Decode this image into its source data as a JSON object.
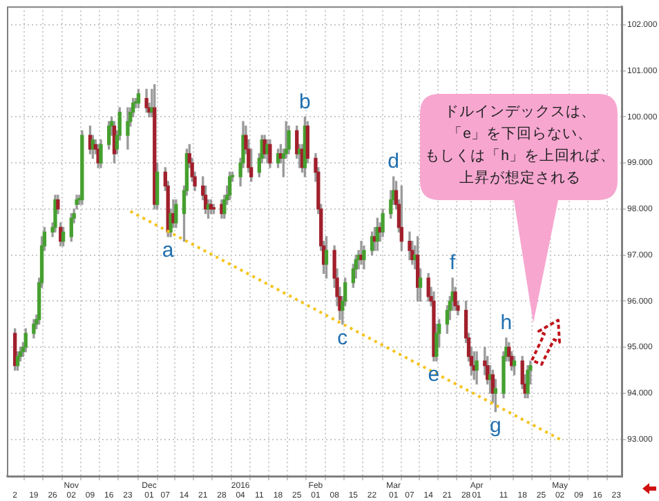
{
  "chart_data": {
    "type": "candlestick",
    "x": [
      "2015-10-12",
      "2015-10-13",
      "2015-10-14",
      "2015-10-15",
      "2015-10-16",
      "2015-10-19",
      "2015-10-20",
      "2015-10-21",
      "2015-10-22",
      "2015-10-23",
      "2015-10-26",
      "2015-10-27",
      "2015-10-28",
      "2015-10-29",
      "2015-10-30",
      "2015-11-02",
      "2015-11-03",
      "2015-11-04",
      "2015-11-05",
      "2015-11-06",
      "2015-11-09",
      "2015-11-10",
      "2015-11-11",
      "2015-11-12",
      "2015-11-13",
      "2015-11-16",
      "2015-11-17",
      "2015-11-18",
      "2015-11-19",
      "2015-11-20",
      "2015-11-23",
      "2015-11-24",
      "2015-11-25",
      "2015-11-26",
      "2015-11-27",
      "2015-11-30",
      "2015-12-01",
      "2015-12-02",
      "2015-12-03",
      "2015-12-04",
      "2015-12-07",
      "2015-12-08",
      "2015-12-09",
      "2015-12-10",
      "2015-12-11",
      "2015-12-14",
      "2015-12-15",
      "2015-12-16",
      "2015-12-17",
      "2015-12-18",
      "2015-12-21",
      "2015-12-22",
      "2015-12-23",
      "2015-12-24",
      "2015-12-25",
      "2015-12-28",
      "2015-12-29",
      "2015-12-30",
      "2015-12-31",
      "2016-01-01",
      "2016-01-04",
      "2016-01-05",
      "2016-01-06",
      "2016-01-07",
      "2016-01-08",
      "2016-01-11",
      "2016-01-12",
      "2016-01-13",
      "2016-01-14",
      "2016-01-15",
      "2016-01-18",
      "2016-01-19",
      "2016-01-20",
      "2016-01-21",
      "2016-01-22",
      "2016-01-25",
      "2016-01-26",
      "2016-01-27",
      "2016-01-28",
      "2016-01-29",
      "2016-02-01",
      "2016-02-02",
      "2016-02-03",
      "2016-02-04",
      "2016-02-05",
      "2016-02-08",
      "2016-02-09",
      "2016-02-10",
      "2016-02-11",
      "2016-02-12",
      "2016-02-15",
      "2016-02-16",
      "2016-02-17",
      "2016-02-18",
      "2016-02-19",
      "2016-02-22",
      "2016-02-23",
      "2016-02-24",
      "2016-02-25",
      "2016-02-26",
      "2016-02-29",
      "2016-03-01",
      "2016-03-02",
      "2016-03-03",
      "2016-03-04",
      "2016-03-07",
      "2016-03-08",
      "2016-03-09",
      "2016-03-10",
      "2016-03-11",
      "2016-03-14",
      "2016-03-15",
      "2016-03-16",
      "2016-03-17",
      "2016-03-18",
      "2016-03-21",
      "2016-03-22",
      "2016-03-23",
      "2016-03-24",
      "2016-03-25",
      "2016-03-28",
      "2016-03-29",
      "2016-03-30",
      "2016-03-31",
      "2016-04-01",
      "2016-04-04",
      "2016-04-05",
      "2016-04-06",
      "2016-04-07",
      "2016-04-08",
      "2016-04-11",
      "2016-04-12",
      "2016-04-13",
      "2016-04-14",
      "2016-04-15",
      "2016-04-18",
      "2016-04-19",
      "2016-04-20",
      "2016-04-21"
    ],
    "ohlc": [
      [
        95.3,
        95.4,
        94.5,
        94.6
      ],
      [
        94.6,
        94.9,
        94.5,
        94.8
      ],
      [
        94.8,
        95.0,
        94.7,
        94.9
      ],
      [
        94.9,
        95.1,
        94.8,
        95.0
      ],
      [
        95.0,
        95.4,
        94.9,
        95.3
      ],
      [
        95.3,
        95.6,
        95.2,
        95.5
      ],
      [
        95.5,
        95.7,
        95.4,
        95.6
      ],
      [
        95.6,
        96.5,
        95.5,
        96.4
      ],
      [
        96.4,
        97.4,
        96.3,
        97.2
      ],
      [
        97.2,
        97.6,
        97.1,
        97.5
      ],
      [
        97.5,
        97.7,
        97.4,
        97.6
      ],
      [
        97.6,
        98.3,
        97.5,
        98.2
      ],
      [
        98.2,
        98.3,
        97.9,
        98.0
      ],
      [
        97.6,
        97.7,
        97.2,
        97.3
      ],
      [
        97.3,
        97.6,
        97.2,
        97.5
      ],
      [
        97.4,
        97.9,
        97.3,
        97.8
      ],
      [
        97.8,
        98.0,
        97.7,
        97.9
      ],
      [
        98.1,
        98.3,
        98.0,
        98.2
      ],
      [
        98.2,
        98.3,
        98.1,
        98.2
      ],
      [
        98.2,
        99.7,
        98.1,
        99.6
      ],
      [
        99.6,
        99.8,
        99.2,
        99.3
      ],
      [
        99.3,
        99.6,
        99.1,
        99.5
      ],
      [
        99.4,
        99.5,
        99.2,
        99.3
      ],
      [
        99.3,
        99.4,
        98.9,
        99.0
      ],
      [
        99.0,
        99.5,
        98.9,
        99.4
      ],
      [
        99.4,
        99.9,
        99.3,
        99.8
      ],
      [
        99.8,
        100.0,
        99.6,
        99.9
      ],
      [
        99.8,
        99.9,
        99.0,
        99.2
      ],
      [
        99.3,
        99.7,
        99.2,
        99.6
      ],
      [
        99.6,
        100.2,
        99.5,
        100.1
      ],
      [
        99.6,
        100.2,
        99.3,
        99.9
      ],
      [
        99.9,
        100.2,
        99.8,
        100.1
      ],
      [
        100.1,
        100.4,
        100.0,
        100.3
      ],
      [
        100.3,
        100.4,
        100.2,
        100.3
      ],
      [
        100.3,
        100.6,
        100.2,
        100.5
      ],
      [
        100.4,
        100.6,
        100.1,
        100.2
      ],
      [
        100.2,
        100.3,
        100.0,
        100.1
      ],
      [
        100.1,
        100.6,
        100.0,
        100.2
      ],
      [
        100.2,
        100.7,
        98.0,
        98.1
      ],
      [
        98.1,
        99.0,
        98.0,
        98.8
      ],
      [
        98.8,
        98.9,
        98.4,
        98.5
      ],
      [
        98.5,
        98.6,
        97.4,
        97.5
      ],
      [
        97.5,
        98.0,
        97.4,
        97.9
      ],
      [
        97.9,
        98.2,
        97.6,
        97.7
      ],
      [
        97.7,
        98.2,
        97.6,
        98.1
      ],
      [
        97.9,
        98.5,
        97.3,
        98.4
      ],
      [
        98.4,
        99.3,
        98.3,
        99.2
      ],
      [
        99.2,
        99.4,
        98.9,
        99.0
      ],
      [
        99.0,
        99.1,
        98.6,
        98.7
      ],
      [
        98.7,
        98.8,
        98.4,
        98.5
      ],
      [
        98.5,
        98.7,
        98.2,
        98.3
      ],
      [
        98.3,
        98.5,
        97.9,
        98.0
      ],
      [
        98.0,
        98.2,
        97.8,
        98.1
      ],
      [
        98.1,
        98.2,
        97.9,
        98.0
      ],
      [
        98.0,
        98.1,
        97.9,
        98.0
      ],
      [
        98.1,
        98.2,
        97.8,
        97.9
      ],
      [
        97.9,
        98.3,
        97.8,
        98.2
      ],
      [
        98.2,
        98.5,
        98.1,
        98.3
      ],
      [
        98.3,
        98.8,
        98.2,
        98.7
      ],
      [
        98.7,
        98.8,
        98.6,
        98.7
      ],
      [
        98.7,
        99.1,
        98.5,
        99.0
      ],
      [
        99.0,
        99.9,
        98.9,
        99.6
      ],
      [
        99.6,
        99.8,
        99.2,
        99.3
      ],
      [
        99.3,
        99.5,
        98.8,
        98.9
      ],
      [
        98.9,
        99.3,
        98.6,
        98.7
      ],
      [
        98.8,
        99.2,
        98.7,
        99.1
      ],
      [
        99.1,
        99.6,
        99.0,
        99.5
      ],
      [
        99.5,
        99.6,
        99.1,
        99.2
      ],
      [
        99.2,
        99.5,
        99.0,
        99.4
      ],
      [
        99.4,
        99.5,
        98.9,
        99.0
      ],
      [
        99.0,
        99.3,
        98.9,
        99.2
      ],
      [
        99.2,
        99.4,
        99.0,
        99.1
      ],
      [
        99.1,
        99.3,
        98.7,
        99.2
      ],
      [
        99.2,
        99.9,
        99.1,
        99.3
      ],
      [
        99.3,
        99.8,
        99.2,
        99.7
      ],
      [
        99.7,
        99.8,
        99.1,
        99.2
      ],
      [
        99.2,
        99.4,
        98.9,
        99.3
      ],
      [
        99.3,
        99.4,
        98.8,
        98.9
      ],
      [
        98.9,
        100.0,
        98.7,
        99.8
      ],
      [
        99.8,
        99.9,
        99.0,
        99.1
      ],
      [
        99.1,
        99.2,
        98.6,
        98.8
      ],
      [
        98.8,
        98.9,
        97.9,
        98.0
      ],
      [
        98.0,
        98.1,
        97.1,
        97.2
      ],
      [
        97.2,
        97.3,
        96.6,
        96.8
      ],
      [
        96.8,
        97.4,
        96.5,
        97.1
      ],
      [
        97.1,
        97.2,
        96.3,
        96.5
      ],
      [
        96.5,
        96.7,
        95.9,
        96.1
      ],
      [
        96.1,
        96.3,
        95.6,
        95.8
      ],
      [
        95.8,
        96.1,
        95.5,
        96.0
      ],
      [
        96.0,
        96.5,
        95.9,
        96.4
      ],
      [
        96.4,
        96.8,
        96.3,
        96.7
      ],
      [
        96.7,
        97.0,
        96.5,
        96.9
      ],
      [
        96.9,
        97.1,
        96.7,
        97.0
      ],
      [
        97.0,
        97.3,
        96.8,
        96.9
      ],
      [
        96.9,
        97.2,
        96.7,
        97.1
      ],
      [
        97.1,
        97.5,
        97.0,
        97.4
      ],
      [
        97.4,
        97.6,
        97.1,
        97.3
      ],
      [
        97.3,
        97.8,
        97.1,
        97.6
      ],
      [
        97.6,
        97.7,
        97.3,
        97.5
      ],
      [
        97.5,
        98.0,
        97.4,
        97.9
      ],
      [
        97.9,
        98.4,
        97.8,
        98.2
      ],
      [
        98.2,
        98.7,
        98.1,
        98.4
      ],
      [
        98.4,
        98.6,
        98.0,
        98.1
      ],
      [
        98.1,
        98.2,
        97.5,
        97.6
      ],
      [
        97.6,
        98.5,
        97.1,
        97.3
      ],
      [
        97.3,
        97.5,
        96.9,
        97.1
      ],
      [
        97.1,
        97.3,
        96.8,
        96.9
      ],
      [
        96.9,
        97.2,
        96.7,
        97.0
      ],
      [
        97.0,
        97.4,
        96.0,
        96.3
      ],
      [
        96.3,
        96.7,
        96.0,
        96.5
      ],
      [
        96.5,
        96.6,
        96.0,
        96.1
      ],
      [
        96.1,
        96.3,
        95.9,
        96.0
      ],
      [
        96.0,
        96.2,
        94.7,
        94.8
      ],
      [
        94.8,
        95.5,
        94.7,
        95.3
      ],
      [
        95.3,
        95.6,
        95.0,
        95.5
      ],
      [
        95.5,
        95.9,
        95.3,
        95.8
      ],
      [
        95.8,
        96.1,
        95.6,
        96.0
      ],
      [
        96.0,
        96.5,
        95.8,
        96.2
      ],
      [
        96.2,
        96.3,
        95.8,
        95.9
      ],
      [
        95.9,
        96.0,
        95.7,
        95.8
      ],
      [
        95.8,
        96.0,
        95.1,
        95.2
      ],
      [
        95.2,
        95.3,
        94.7,
        94.8
      ],
      [
        94.8,
        95.0,
        94.4,
        94.6
      ],
      [
        94.6,
        94.9,
        94.3,
        94.5
      ],
      [
        94.5,
        94.9,
        94.2,
        94.7
      ],
      [
        94.7,
        95.0,
        94.4,
        94.6
      ],
      [
        94.6,
        94.8,
        94.2,
        94.3
      ],
      [
        94.3,
        94.6,
        94.0,
        94.4
      ],
      [
        94.4,
        94.5,
        93.8,
        94.0
      ],
      [
        94.0,
        94.3,
        93.6,
        94.1
      ],
      [
        94.0,
        94.9,
        93.9,
        94.8
      ],
      [
        94.8,
        95.2,
        94.7,
        95.0
      ],
      [
        95.0,
        95.1,
        94.7,
        94.8
      ],
      [
        94.8,
        94.9,
        94.5,
        94.6
      ],
      [
        94.6,
        94.8,
        94.4,
        94.7
      ],
      [
        94.7,
        94.8,
        94.1,
        94.2
      ],
      [
        94.2,
        94.4,
        93.9,
        94.0
      ],
      [
        94.0,
        94.6,
        93.9,
        94.5
      ],
      [
        94.5,
        94.7,
        94.2,
        94.6
      ]
    ],
    "colors": [
      "#a0202c",
      "#45a02f",
      "#45a02f",
      "#45a02f",
      "#45a02f",
      "#45a02f",
      "#45a02f",
      "#45a02f",
      "#45a02f",
      "#45a02f",
      "#45a02f",
      "#45a02f",
      "#a0202c",
      "#a0202c",
      "#45a02f",
      "#45a02f",
      "#45a02f",
      "#45a02f",
      "#45a02f",
      "#45a02f",
      "#a0202c",
      "#45a02f",
      "#a0202c",
      "#a0202c",
      "#45a02f",
      "#45a02f",
      "#45a02f",
      "#a0202c",
      "#45a02f",
      "#45a02f",
      "#45a02f",
      "#45a02f",
      "#45a02f",
      "#45a02f",
      "#45a02f",
      "#a0202c",
      "#a0202c",
      "#45a02f",
      "#a0202c",
      "#45a02f",
      "#a0202c",
      "#a0202c",
      "#45a02f",
      "#a0202c",
      "#45a02f",
      "#45a02f",
      "#45a02f",
      "#a0202c",
      "#a0202c",
      "#a0202c",
      "#a0202c",
      "#a0202c",
      "#45a02f",
      "#a0202c",
      "#a0202c",
      "#a0202c",
      "#45a02f",
      "#45a02f",
      "#45a02f",
      "#45a02f",
      "#45a02f",
      "#45a02f",
      "#a0202c",
      "#a0202c",
      "#a0202c",
      "#45a02f",
      "#45a02f",
      "#a0202c",
      "#45a02f",
      "#a0202c",
      "#45a02f",
      "#a0202c",
      "#45a02f",
      "#45a02f",
      "#45a02f",
      "#a0202c",
      "#45a02f",
      "#a0202c",
      "#45a02f",
      "#a0202c",
      "#a0202c",
      "#a0202c",
      "#a0202c",
      "#a0202c",
      "#45a02f",
      "#a0202c",
      "#a0202c",
      "#a0202c",
      "#45a02f",
      "#45a02f",
      "#45a02f",
      "#45a02f",
      "#45a02f",
      "#a0202c",
      "#45a02f",
      "#45a02f",
      "#a0202c",
      "#45a02f",
      "#a0202c",
      "#45a02f",
      "#45a02f",
      "#45a02f",
      "#a0202c",
      "#a0202c",
      "#a0202c",
      "#a0202c",
      "#a0202c",
      "#45a02f",
      "#a0202c",
      "#45a02f",
      "#a0202c",
      "#a0202c",
      "#a0202c",
      "#45a02f",
      "#45a02f",
      "#45a02f",
      "#45a02f",
      "#45a02f",
      "#a0202c",
      "#a0202c",
      "#a0202c",
      "#a0202c",
      "#a0202c",
      "#a0202c",
      "#45a02f",
      "#a0202c",
      "#a0202c",
      "#45a02f",
      "#a0202c",
      "#45a02f",
      "#45a02f",
      "#45a02f",
      "#a0202c",
      "#a0202c",
      "#45a02f",
      "#a0202c",
      "#a0202c",
      "#45a02f",
      "#45a02f"
    ],
    "series": [
      {
        "type": "line",
        "x": [
          "2015-11-24",
          "2016-05-02"
        ],
        "values": [
          97.95,
          93.0
        ],
        "color": "#f5c31c",
        "line_style": "dotted"
      }
    ],
    "xlim": [
      "2015-10-09",
      "2016-05-25"
    ],
    "xticks": [
      {
        "value": "2015-10-12",
        "label": "2"
      },
      {
        "value": "2015-10-19",
        "label": "19"
      },
      {
        "value": "2015-10-26",
        "label": "26"
      },
      {
        "value": "2015-11-02",
        "label": "Nov\n02"
      },
      {
        "value": "2015-11-09",
        "label": "09"
      },
      {
        "value": "2015-11-16",
        "label": "16"
      },
      {
        "value": "2015-11-23",
        "label": "23"
      },
      {
        "value": "2015-12-01",
        "label": "Dec\n01"
      },
      {
        "value": "2015-12-07",
        "label": "07"
      },
      {
        "value": "2015-12-14",
        "label": "14"
      },
      {
        "value": "2015-12-21",
        "label": "21"
      },
      {
        "value": "2015-12-28",
        "label": "28"
      },
      {
        "value": "2016-01-04",
        "label": "2016\n04"
      },
      {
        "value": "2016-01-11",
        "label": "11"
      },
      {
        "value": "2016-01-18",
        "label": "18"
      },
      {
        "value": "2016-01-25",
        "label": "25"
      },
      {
        "value": "2016-02-01",
        "label": "Feb\n01"
      },
      {
        "value": "2016-02-08",
        "label": "08"
      },
      {
        "value": "2016-02-15",
        "label": "15"
      },
      {
        "value": "2016-02-22",
        "label": "22"
      },
      {
        "value": "2016-03-01",
        "label": "Mar\n01"
      },
      {
        "value": "2016-03-07",
        "label": "07"
      },
      {
        "value": "2016-03-14",
        "label": "14"
      },
      {
        "value": "2016-03-21",
        "label": "21"
      },
      {
        "value": "2016-03-28",
        "label": "28"
      },
      {
        "value": "2016-04-01",
        "label": "Apr\n01"
      },
      {
        "value": "2016-04-11",
        "label": "11"
      },
      {
        "value": "2016-04-18",
        "label": "18"
      },
      {
        "value": "2016-04-25",
        "label": "25"
      },
      {
        "value": "2016-05-02",
        "label": "May\n02"
      },
      {
        "value": "2016-05-09",
        "label": "09"
      },
      {
        "value": "2016-05-16",
        "label": "16"
      },
      {
        "value": "2016-05-23",
        "label": "23"
      }
    ],
    "ylim": [
      92.2,
      102.4
    ],
    "yticks": [
      {
        "value": 93,
        "label": "93.000"
      },
      {
        "value": 94,
        "label": "94.000"
      },
      {
        "value": 95,
        "label": "95.000"
      },
      {
        "value": 96,
        "label": "96.000"
      },
      {
        "value": 97,
        "label": "97.000"
      },
      {
        "value": 98,
        "label": "98.000"
      },
      {
        "value": 99,
        "label": "99.000"
      },
      {
        "value": 100,
        "label": "100.000"
      },
      {
        "value": 101,
        "label": "101.000"
      },
      {
        "value": 102,
        "label": "102.000"
      }
    ],
    "grid": true,
    "annotations": [
      "ドルインデックスは、「e」を下回らない、もしくは「h」を上回れば、上昇が想定される",
      {
        "text": "a",
        "x": "2015-12-08",
        "y": 97.4
      },
      {
        "text": "b",
        "x": "2016-01-28",
        "y": 100.0
      },
      {
        "text": "c",
        "x": "2016-02-11",
        "y": 95.5
      },
      {
        "text": "d",
        "x": "2016-03-01",
        "y": 98.7
      },
      {
        "text": "e",
        "x": "2016-03-16",
        "y": 94.7
      },
      {
        "text": "f",
        "x": "2016-03-23",
        "y": 96.5
      },
      {
        "text": "g",
        "x": "2016-04-08",
        "y": 93.6
      },
      {
        "text": "h",
        "x": "2016-04-12",
        "y": 95.2
      }
    ]
  }
}
